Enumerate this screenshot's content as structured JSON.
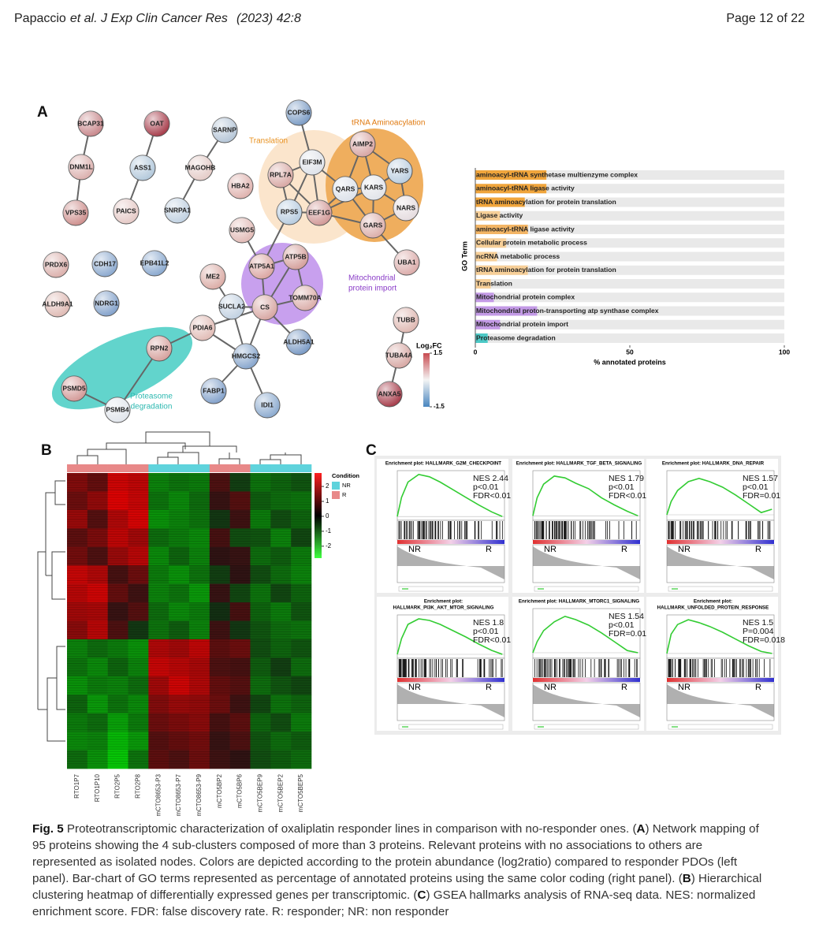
{
  "header": {
    "author": "Papaccio",
    "journal": "et al. J Exp Clin Cancer Res",
    "citation": "(2023) 42:8",
    "page": "Page 12 of 22"
  },
  "panels": [
    "A",
    "B",
    "C"
  ],
  "network": {
    "nodes": [
      {
        "label": "BCAP31",
        "color": "#c98a8e"
      },
      {
        "label": "OAT",
        "color": "#a8404e"
      },
      {
        "label": "SARNP",
        "color": "#b7c7d8"
      },
      {
        "label": "COPS6",
        "color": "#7e9ec6"
      },
      {
        "label": "DNM1L",
        "color": "#dcb2b0"
      },
      {
        "label": "ASS1",
        "color": "#b5cadc"
      },
      {
        "label": "MAGOHB",
        "color": "#e5cdc9"
      },
      {
        "label": "EIF3M",
        "color": "#dfe3ea"
      },
      {
        "label": "AIMP2",
        "color": "#d9a8a6"
      },
      {
        "label": "YARS",
        "color": "#bccfe0"
      },
      {
        "label": "KARS",
        "color": "#e2e4ea"
      },
      {
        "label": "QARS",
        "color": "#dde2ea"
      },
      {
        "label": "RPL7A",
        "color": "#d9aaa6"
      },
      {
        "label": "HBA2",
        "color": "#e0b4b0"
      },
      {
        "label": "NARS",
        "color": "#e6dde0"
      },
      {
        "label": "PAICS",
        "color": "#e6cbc8"
      },
      {
        "label": "SNRPA1",
        "color": "#c2d2e2"
      },
      {
        "label": "RPS5",
        "color": "#b9cde0"
      },
      {
        "label": "EEF1G",
        "color": "#d29a98"
      },
      {
        "label": "GARS",
        "color": "#dcb0ac"
      },
      {
        "label": "VPS35",
        "color": "#cf9290"
      },
      {
        "label": "USMG5",
        "color": "#e2bcb8"
      },
      {
        "label": "UBA1",
        "color": "#dcaeac"
      },
      {
        "label": "PRDX6",
        "color": "#dcb2ae"
      },
      {
        "label": "CDH17",
        "color": "#8eabd0"
      },
      {
        "label": "EPB41L2",
        "color": "#8dabd0"
      },
      {
        "label": "ATP5B",
        "color": "#d6a29e"
      },
      {
        "label": "ATP5A1",
        "color": "#dca8a4"
      },
      {
        "label": "ME2",
        "color": "#dcaea8"
      },
      {
        "label": "ALDH9A1",
        "color": "#e0bcb6"
      },
      {
        "label": "NDRG1",
        "color": "#86a4cc"
      },
      {
        "label": "TOMM70A",
        "color": "#dcb0ac"
      },
      {
        "label": "SUCLA2",
        "color": "#c3d2e2"
      },
      {
        "label": "CS",
        "color": "#d8a8a4"
      },
      {
        "label": "TUBB",
        "color": "#e0bab4"
      },
      {
        "label": "PDIA6",
        "color": "#e2beb8"
      },
      {
        "label": "ALDH5A1",
        "color": "#7c9cc6"
      },
      {
        "label": "RPN2",
        "color": "#d7a4a0"
      },
      {
        "label": "TUBA4A",
        "color": "#d8aaa6"
      },
      {
        "label": "PSMB4",
        "color": "#e2e6ec"
      },
      {
        "label": "HMGCS2",
        "color": "#8aa8ce"
      },
      {
        "label": "PSMD5",
        "color": "#d49c9a"
      },
      {
        "label": "FABP1",
        "color": "#86a4cc"
      },
      {
        "label": "IDI1",
        "color": "#8eacd0"
      },
      {
        "label": "ANXA5",
        "color": "#a8404e"
      }
    ],
    "edges": [
      [
        0,
        4
      ],
      [
        4,
        20
      ],
      [
        1,
        5
      ],
      [
        5,
        15
      ],
      [
        2,
        6
      ],
      [
        6,
        16
      ],
      [
        3,
        7
      ],
      [
        7,
        12
      ],
      [
        7,
        17
      ],
      [
        7,
        18
      ],
      [
        7,
        11
      ],
      [
        12,
        17
      ],
      [
        12,
        18
      ],
      [
        17,
        18
      ],
      [
        18,
        11
      ],
      [
        18,
        10
      ],
      [
        18,
        19
      ],
      [
        8,
        11
      ],
      [
        8,
        10
      ],
      [
        8,
        9
      ],
      [
        9,
        10
      ],
      [
        9,
        14
      ],
      [
        10,
        11
      ],
      [
        10,
        14
      ],
      [
        10,
        19
      ],
      [
        11,
        19
      ],
      [
        14,
        19
      ],
      [
        19,
        22
      ],
      [
        17,
        27
      ],
      [
        21,
        27
      ],
      [
        27,
        26
      ],
      [
        26,
        33
      ],
      [
        27,
        33
      ],
      [
        26,
        31
      ],
      [
        31,
        33
      ],
      [
        28,
        32
      ],
      [
        32,
        33
      ],
      [
        33,
        36
      ],
      [
        32,
        40
      ],
      [
        33,
        40
      ],
      [
        35,
        33
      ],
      [
        35,
        37
      ],
      [
        37,
        39
      ],
      [
        39,
        41
      ],
      [
        40,
        42
      ],
      [
        40,
        43
      ],
      [
        40,
        35
      ],
      [
        34,
        38
      ],
      [
        38,
        44
      ]
    ],
    "clusters": [
      {
        "label": [
          "Translation"
        ],
        "color": "#e8901e"
      },
      {
        "label": [
          "tRNA Aminoacylation"
        ],
        "color": "#e07a10"
      },
      {
        "label": [
          "Mitochondrial",
          "protein import"
        ],
        "color": "#8a3cc8"
      },
      {
        "label": [
          "Proteasome",
          "degradation"
        ],
        "color": "#2cb8b0"
      }
    ],
    "colorbar": {
      "title": "Log₂FC",
      "lim": [
        -1.5,
        1.5
      ],
      "ticks": [
        1.5,
        -1.5
      ]
    }
  },
  "chart_data": [
    {
      "type": "bar",
      "orientation": "horizontal",
      "categories": [
        "aminoacyl-tRNA synthetase multienzyme complex",
        "aminoacyl-tRNA ligase activity",
        "tRNA aminoacylation for protein translation",
        "Ligase activity",
        "aminoacyl-tRNA ligase activity",
        "Cellular protein metabolic process",
        "ncRNA metabolic process",
        "tRNA aminoacylation for protein translation",
        "Translation",
        "Mitochondrial protein complex",
        "Mitochondrial proton-transporting atp synthase complex",
        "Mitochondrial protein import",
        "Proteasome degradation"
      ],
      "values": [
        23,
        23,
        16,
        8,
        17,
        10,
        7,
        17,
        5,
        6,
        20,
        8,
        4
      ],
      "colors": [
        "#f0a53c",
        "#f0a53c",
        "#f0a53c",
        "#f7cf98",
        "#f3b565",
        "#f7cf98",
        "#f7cf98",
        "#f7cf98",
        "#f7cf98",
        "#c39ae6",
        "#c39ae6",
        "#c39ae6",
        "#4cc9c6"
      ],
      "xlim": [
        0,
        100
      ],
      "xticks": [
        0,
        50,
        100
      ],
      "xlabel": "% annotated proteins",
      "ylabel": "GO Term"
    },
    {
      "type": "heatmap",
      "columns": [
        "RTO1P7",
        "RTO1P10",
        "RTO2P5",
        "RTO2P8",
        "mCTO8653-P3",
        "mCTO8653-P7",
        "mCTO8653-P9",
        "mCTO5BP2",
        "mCTO5BP6",
        "mCTO5BEP9",
        "mCTO5BEP2",
        "mCTO5BEP5"
      ],
      "conditions": [
        "R",
        "R",
        "R",
        "R",
        "NR",
        "NR",
        "NR",
        "R",
        "R",
        "NR",
        "NR",
        "NR"
      ],
      "legend_title": "Condition",
      "legend": [
        {
          "name": "NR",
          "color": "#5fd3dc"
        },
        {
          "name": "R",
          "color": "#e88888"
        }
      ],
      "matrix": [
        [
          1.2,
          0.8,
          2.2,
          2.0,
          -1.2,
          -1.0,
          -1.1,
          0.5,
          -0.3,
          -1.0,
          -0.8,
          -0.6
        ],
        [
          0.9,
          1.4,
          2.4,
          2.1,
          -1.0,
          -1.3,
          -0.9,
          0.2,
          0.6,
          -0.7,
          -0.9,
          -1.0
        ],
        [
          1.5,
          0.6,
          1.8,
          2.3,
          -1.4,
          -1.2,
          -1.0,
          -0.2,
          0.3,
          -1.1,
          -0.5,
          -0.8
        ],
        [
          0.7,
          1.1,
          2.0,
          1.6,
          -0.9,
          -1.1,
          -1.3,
          0.4,
          -0.5,
          -0.6,
          -1.2,
          -0.4
        ],
        [
          1.0,
          0.5,
          1.5,
          1.9,
          -1.3,
          -0.8,
          -1.2,
          0.1,
          0.2,
          -0.9,
          -0.7,
          -1.1
        ],
        [
          2.1,
          1.8,
          0.4,
          0.9,
          -1.1,
          -1.4,
          -1.0,
          -0.3,
          0.1,
          -0.5,
          -0.9,
          -1.2
        ],
        [
          1.9,
          2.2,
          0.8,
          0.3,
          -1.2,
          -1.0,
          -1.5,
          0.2,
          -0.4,
          -1.0,
          -0.4,
          -0.8
        ],
        [
          1.6,
          1.7,
          0.2,
          0.6,
          -0.9,
          -1.3,
          -1.1,
          -0.1,
          0.4,
          -0.8,
          -1.1,
          -0.6
        ],
        [
          1.3,
          1.9,
          0.5,
          -0.2,
          -1.0,
          -0.7,
          -1.2,
          0.3,
          -0.2,
          -0.6,
          -0.9,
          -1.0
        ],
        [
          -1.2,
          -0.9,
          -1.1,
          -1.4,
          1.8,
          1.6,
          2.0,
          0.7,
          0.9,
          -0.5,
          -0.8,
          -0.6
        ],
        [
          -1.0,
          -1.3,
          -0.8,
          -1.2,
          2.1,
          1.9,
          1.7,
          0.5,
          0.4,
          -0.7,
          -0.3,
          -0.9
        ],
        [
          -1.4,
          -1.1,
          -1.2,
          -0.9,
          1.6,
          2.2,
          1.8,
          0.8,
          0.6,
          -0.9,
          -0.6,
          -0.4
        ],
        [
          -0.8,
          -1.5,
          -1.0,
          -1.3,
          1.2,
          1.5,
          1.4,
          0.9,
          0.3,
          -0.4,
          -1.0,
          -0.8
        ],
        [
          -1.1,
          -0.9,
          -1.6,
          -1.1,
          0.9,
          1.1,
          1.3,
          0.4,
          0.7,
          -0.8,
          -0.5,
          -1.1
        ],
        [
          -1.3,
          -1.2,
          -1.9,
          -1.5,
          0.6,
          0.8,
          1.0,
          0.2,
          0.5,
          -0.6,
          -0.9,
          -0.7
        ],
        [
          -0.9,
          -1.4,
          -2.1,
          -1.0,
          0.7,
          0.5,
          0.9,
          0.3,
          0.1,
          -0.5,
          -0.7,
          -0.9
        ]
      ],
      "zlim": [
        -2.8,
        2.9
      ],
      "zticks": [
        2,
        1,
        0,
        -1,
        -2
      ]
    },
    {
      "type": "line",
      "title": [
        "Enrichment plot: HALLMARK_G2M_CHECKPOINT"
      ],
      "stats": [
        "NES 2.44",
        "p<0.01",
        "FDR<0.01"
      ],
      "groups": [
        "NR",
        "R"
      ],
      "color": "#33cc33",
      "x": [
        0,
        1000,
        2500,
        5000,
        7500,
        10000,
        13000,
        16000,
        19000,
        22000,
        24500
      ],
      "values": [
        0,
        0.25,
        0.45,
        0.55,
        0.52,
        0.45,
        0.35,
        0.25,
        0.15,
        0.06,
        0
      ],
      "xlim": [
        0,
        25000
      ],
      "ylim": [
        -0.05,
        0.6
      ]
    },
    {
      "type": "line",
      "title": [
        "Enrichment plot: HALLMARK_TGF_BETA_SIGNALING"
      ],
      "stats": [
        "NES 1.79",
        "p<0.01",
        "FDR<0.01"
      ],
      "groups": [
        "NR",
        "R"
      ],
      "color": "#33cc33",
      "x": [
        0,
        1000,
        2500,
        5000,
        7500,
        10000,
        13000,
        16000,
        19000,
        22000,
        24500
      ],
      "values": [
        0,
        0.2,
        0.35,
        0.44,
        0.42,
        0.36,
        0.3,
        0.2,
        0.12,
        0.05,
        0
      ],
      "xlim": [
        0,
        25000
      ],
      "ylim": [
        -0.05,
        0.5
      ]
    },
    {
      "type": "line",
      "title": [
        "Enrichment plot: HALLMARK_DNA_REPAIR"
      ],
      "stats": [
        "NES 1.57",
        "p<0.01",
        "FDR=0.01"
      ],
      "groups": [
        "NR",
        "R"
      ],
      "color": "#33cc33",
      "x": [
        0,
        1000,
        2500,
        5000,
        7500,
        10000,
        13000,
        16000,
        19000,
        22000,
        24500
      ],
      "values": [
        0,
        0.12,
        0.22,
        0.3,
        0.33,
        0.3,
        0.25,
        0.18,
        0.1,
        0.02,
        0.05
      ],
      "xlim": [
        0,
        25000
      ],
      "ylim": [
        -0.05,
        0.4
      ]
    },
    {
      "type": "line",
      "title": [
        "Enrichment plot:",
        "HALLMARK_PI3K_AKT_MTOR_SIGNALING"
      ],
      "stats": [
        "NES 1.8",
        "p<0.01",
        "FDR<0.01"
      ],
      "groups": [
        "NR",
        "R"
      ],
      "color": "#33cc33",
      "x": [
        0,
        1000,
        2500,
        5000,
        7500,
        10000,
        13000,
        16000,
        19000,
        22000,
        24500
      ],
      "values": [
        0,
        0.2,
        0.38,
        0.45,
        0.43,
        0.38,
        0.3,
        0.22,
        0.13,
        0.05,
        0
      ],
      "xlim": [
        0,
        25000
      ],
      "ylim": [
        -0.05,
        0.5
      ]
    },
    {
      "type": "line",
      "title": [
        "Enrichment plot: HALLMARK_MTORC1_SIGNALING"
      ],
      "stats": [
        "NES 1.54",
        "p<0.01",
        "FDR=0.012"
      ],
      "groups": [
        "NR",
        "R"
      ],
      "color": "#33cc33",
      "x": [
        0,
        1000,
        2500,
        5000,
        7500,
        10000,
        13000,
        16000,
        19000,
        22000,
        24500
      ],
      "values": [
        0,
        0.1,
        0.2,
        0.28,
        0.33,
        0.3,
        0.25,
        0.18,
        0.1,
        0.02,
        0
      ],
      "xlim": [
        0,
        25000
      ],
      "ylim": [
        -0.05,
        0.4
      ]
    },
    {
      "type": "line",
      "title": [
        "Enrichment plot:",
        "HALLMARK_UNFOLDED_PROTEIN_RESPONSE"
      ],
      "stats": [
        "NES 1.5",
        "P=0.004",
        "FDR=0.018"
      ],
      "groups": [
        "NR",
        "R"
      ],
      "color": "#33cc33",
      "x": [
        0,
        1000,
        2500,
        5000,
        7500,
        10000,
        13000,
        16000,
        19000,
        22000,
        24500
      ],
      "values": [
        0,
        0.2,
        0.3,
        0.35,
        0.32,
        0.28,
        0.22,
        0.15,
        0.08,
        0.02,
        0
      ],
      "xlim": [
        0,
        25000
      ],
      "ylim": [
        -0.05,
        0.4
      ]
    }
  ],
  "caption": [
    {
      "text": "Fig. 5",
      "bold": true
    },
    {
      "text": "  Proteotranscriptomic characterization of oxaliplatin responder lines in comparison with no-responder ones. (",
      "bold": false
    },
    {
      "text": "A",
      "bold": true
    },
    {
      "text": ") Network mapping of 95 proteins showing the 4 sub-clusters composed of more than 3 proteins. Relevant proteins with no associations to others are represented as isolated nodes. Colors are depicted according to the protein abundance (log2ratio) compared to responder PDOs (left panel). Bar-chart of GO terms represented as percentage of annotated proteins using the same color coding (right panel). (",
      "bold": false
    },
    {
      "text": "B",
      "bold": true
    },
    {
      "text": ") Hierarchical clustering heatmap of differentially expressed genes per transcriptomic. (",
      "bold": false
    },
    {
      "text": "C",
      "bold": true
    },
    {
      "text": ") GSEA hallmarks analysis of RNA-seq data. NES: normalized enrichment score. FDR: false discovery rate. R: responder; NR: non responder",
      "bold": false
    }
  ]
}
